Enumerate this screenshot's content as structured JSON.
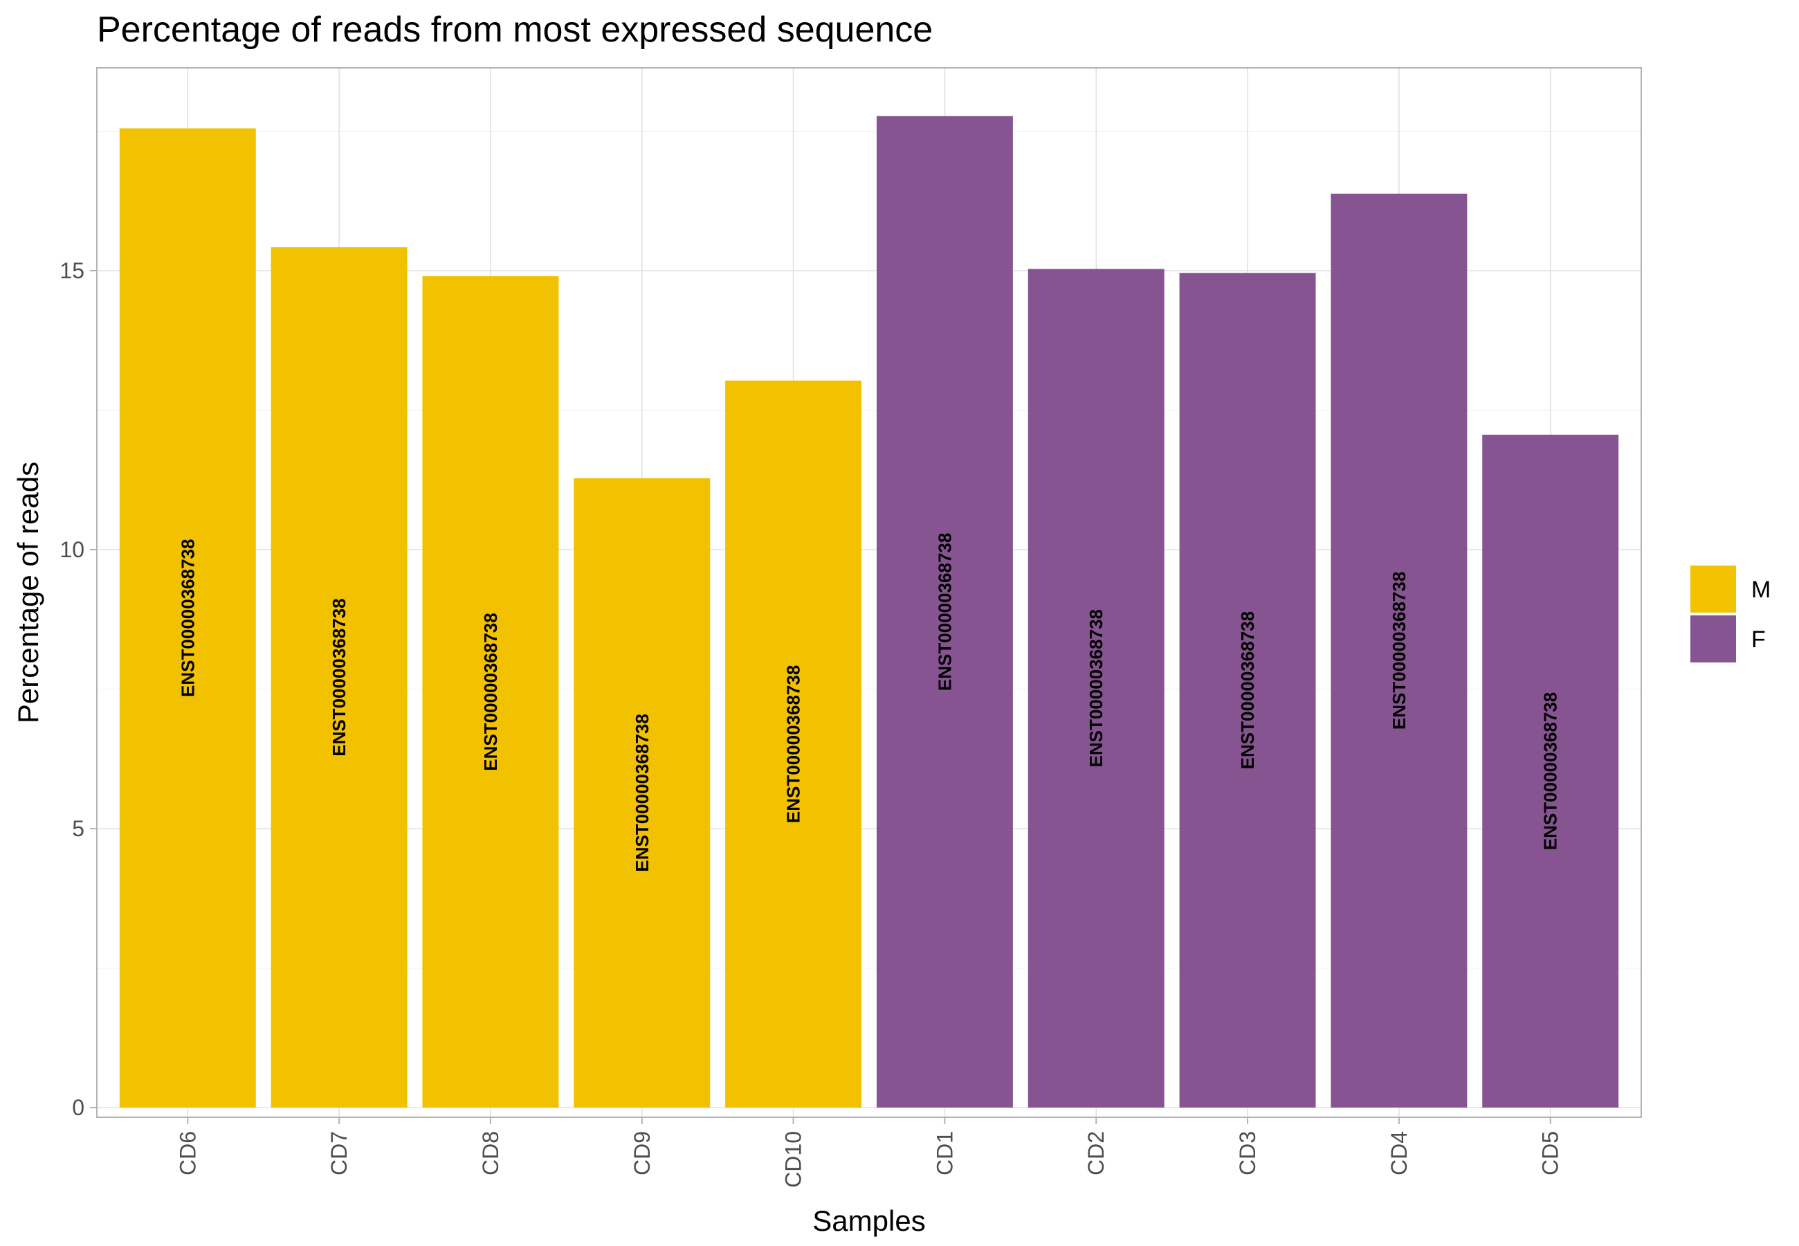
{
  "chart_data": {
    "type": "bar",
    "title": "Percentage of reads from most expressed sequence",
    "xlabel": "Samples",
    "ylabel": "Percentage of reads",
    "ylim": [
      0,
      18
    ],
    "yticks": [
      0,
      5,
      10,
      15
    ],
    "grid": true,
    "legend_position": "right",
    "categories": [
      "CD6",
      "CD7",
      "CD8",
      "CD9",
      "CD10",
      "CD1",
      "CD2",
      "CD3",
      "CD4",
      "CD5"
    ],
    "values": [
      17.55,
      15.42,
      14.9,
      11.28,
      13.03,
      17.77,
      15.03,
      14.96,
      16.38,
      12.06
    ],
    "groups": [
      "M",
      "M",
      "M",
      "M",
      "M",
      "F",
      "F",
      "F",
      "F",
      "F"
    ],
    "bar_labels": [
      "ENST00000368738",
      "ENST00000368738",
      "ENST00000368738",
      "ENST00000368738",
      "ENST00000368738",
      "ENST00000368738",
      "ENST00000368738",
      "ENST00000368738",
      "ENST00000368738",
      "ENST00000368738"
    ],
    "legend": [
      {
        "label": "M",
        "color": "#F2C200"
      },
      {
        "label": "F",
        "color": "#865591"
      }
    ]
  }
}
